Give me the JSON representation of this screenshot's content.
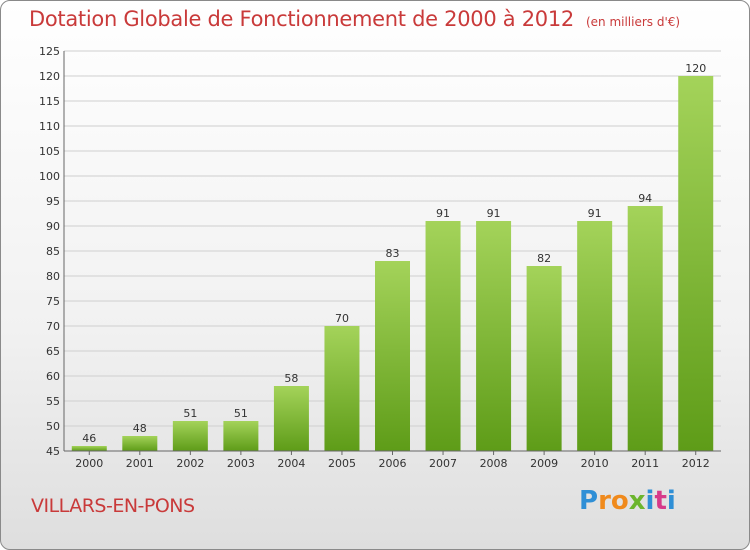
{
  "chart_data": {
    "type": "bar",
    "title": "Dotation Globale de Fonctionnement de 2000 à 2012",
    "unit_note": "(en milliers d'€)",
    "categories": [
      "2000",
      "2001",
      "2002",
      "2003",
      "2004",
      "2005",
      "2006",
      "2007",
      "2008",
      "2009",
      "2010",
      "2011",
      "2012"
    ],
    "values": [
      46,
      48,
      51,
      51,
      58,
      70,
      83,
      91,
      91,
      82,
      91,
      94,
      120
    ],
    "ylim": [
      45,
      125
    ],
    "yticks": [
      45,
      50,
      55,
      60,
      65,
      70,
      75,
      80,
      85,
      90,
      95,
      100,
      105,
      110,
      115,
      120,
      125
    ],
    "grid": true,
    "bar_color_top": "#a4d35a",
    "bar_color_bottom": "#5e9c18"
  },
  "footer": {
    "city": "VILLARS-EN-PONS",
    "logo_letters": [
      "P",
      "r",
      "o",
      "x",
      "i",
      "t",
      "i"
    ],
    "logo_colors": [
      "#2f8fd6",
      "#f08a1c",
      "#f08a1c",
      "#6cb52d",
      "#2f8fd6",
      "#d63a8a",
      "#2f8fd6"
    ]
  }
}
